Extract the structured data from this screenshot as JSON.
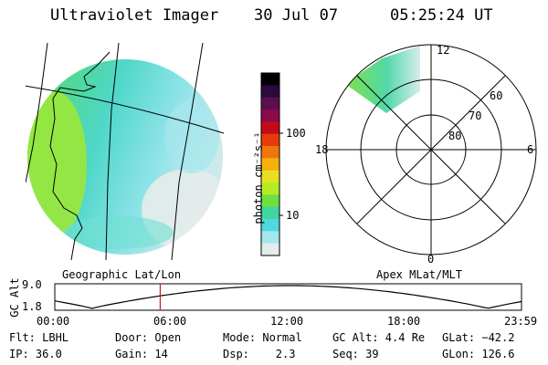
{
  "header": {
    "instrument": "Ultraviolet Imager",
    "date": "30 Jul 07",
    "time": "05:25:24 UT"
  },
  "image_panel": {
    "label": "Geographic Lat/Lon"
  },
  "colorbar": {
    "unit_label": "photon cm⁻²s⁻¹",
    "ticks": [
      "100",
      "10"
    ],
    "colors": [
      "#000000",
      "#2b0a3d",
      "#5a0f50",
      "#8a0a4a",
      "#c40a1a",
      "#e83a0a",
      "#f0760a",
      "#f5b010",
      "#e8e020",
      "#b7ec25",
      "#6fe040",
      "#3fd6a0",
      "#4fd8e0",
      "#a5e8ec",
      "#e2ecea"
    ]
  },
  "polar_plot": {
    "label": "Apex MLat/MLT",
    "mlt_labels": {
      "top": "12",
      "bottom": "0",
      "left": "18",
      "right": "6"
    },
    "mlat_labels": [
      "60",
      "70",
      "80"
    ]
  },
  "altitude_strip": {
    "axis_label": "GC Alt",
    "y_ticks": [
      "9.0",
      "1.8"
    ],
    "x_ticks": [
      "00:00",
      "06:00",
      "12:00",
      "18:00",
      "23:59"
    ],
    "current_time_fraction": 0.2259
  },
  "info": {
    "flt": "Flt: LBHL",
    "ip": "IP: 36.0",
    "door": "Door: Open",
    "gain": "Gain: 14",
    "mode": "Mode: Normal",
    "dsp": "Dsp:    2.3",
    "gc_alt": "GC Alt: 4.4 Re",
    "seq": "Seq: 39",
    "glat": "GLat: −42.2",
    "glon": "GLon: 126.6"
  }
}
